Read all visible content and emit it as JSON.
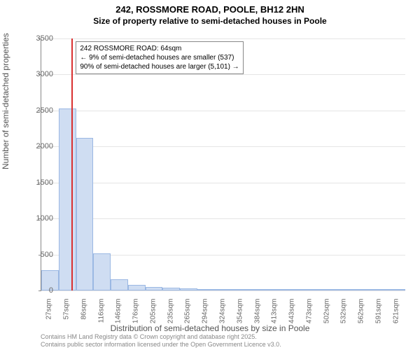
{
  "title_line1": "242, ROSSMORE ROAD, POOLE, BH12 2HN",
  "title_line2": "Size of property relative to semi-detached houses in Poole",
  "y_label": "Number of semi-detached properties",
  "x_label": "Distribution of semi-detached houses by size in Poole",
  "footer_line1": "Contains HM Land Registry data © Crown copyright and database right 2025.",
  "footer_line2": "Contains public sector information licensed under the Open Government Licence v3.0.",
  "annotation": {
    "line1": "242 ROSSMORE ROAD: 64sqm",
    "line2": "← 9% of semi-detached houses are smaller (537)",
    "line3": "90% of semi-detached houses are larger (5,101) →"
  },
  "chart": {
    "type": "histogram",
    "ylim": [
      0,
      3500
    ],
    "ytick_step": 500,
    "y_ticks": [
      0,
      500,
      1000,
      1500,
      2000,
      2500,
      3000,
      3500
    ],
    "x_tick_labels": [
      "27sqm",
      "57sqm",
      "86sqm",
      "116sqm",
      "146sqm",
      "176sqm",
      "205sqm",
      "235sqm",
      "265sqm",
      "294sqm",
      "324sqm",
      "354sqm",
      "384sqm",
      "413sqm",
      "443sqm",
      "473sqm",
      "502sqm",
      "532sqm",
      "562sqm",
      "591sqm",
      "621sqm"
    ],
    "bars": [
      280,
      2530,
      2120,
      520,
      160,
      80,
      50,
      40,
      30,
      20,
      15,
      10,
      8,
      5,
      5,
      3,
      3,
      2,
      2,
      2,
      1
    ],
    "bar_fill": "#cfddf2",
    "bar_stroke": "#9bb8e3",
    "grid_color": "#e5e5e5",
    "axis_color": "#888888",
    "background": "#ffffff",
    "ref_line_value": 64,
    "ref_line_color": "#d93030",
    "x_range": [
      12,
      636
    ],
    "title_fontsize": 13,
    "label_fontsize": 12,
    "tick_fontsize": 10
  }
}
